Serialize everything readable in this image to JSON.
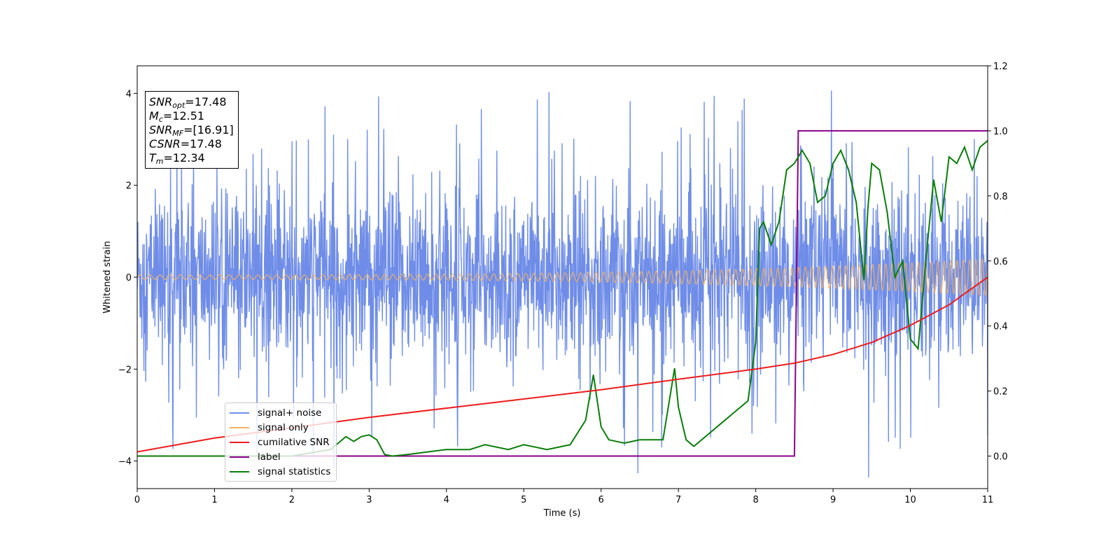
{
  "chart_data": {
    "type": "line",
    "xlabel": "Time (s)",
    "ylabel": "Whitened strain",
    "xlim": [
      0,
      11
    ],
    "ylim_left": [
      -4.6,
      4.6
    ],
    "ylim_right": [
      -0.1,
      1.2
    ],
    "x_ticks": [
      "0",
      "1",
      "2",
      "3",
      "4",
      "5",
      "6",
      "7",
      "8",
      "9",
      "10",
      "11"
    ],
    "y_ticks_left": [
      "−4",
      "−2",
      "0",
      "2",
      "4"
    ],
    "y_ticks_right": [
      "0.0",
      "0.2",
      "0.4",
      "0.6",
      "0.8",
      "1.0",
      "1.2"
    ],
    "series": [
      {
        "name": "signal+ noise",
        "axis": "left",
        "color": "#6f8de8",
        "description": "noise band roughly ±2.5 with spikes up to about ±4"
      },
      {
        "name": "signal only",
        "axis": "left",
        "color": "#f5b261",
        "description": "chirp oscillation, amplitude ~0.05 at t=0 growing to ~0.4 at t=11"
      },
      {
        "name": "cumilative SNR",
        "axis": "left",
        "color": "#ee1c1c",
        "x": [
          0,
          1,
          2,
          3,
          4,
          5,
          6,
          7,
          8,
          8.5,
          9,
          9.5,
          10,
          10.5,
          11
        ],
        "y": [
          -3.8,
          -3.5,
          -3.28,
          -3.05,
          -2.85,
          -2.65,
          -2.45,
          -2.22,
          -2.0,
          -1.87,
          -1.68,
          -1.42,
          -1.05,
          -0.6,
          0.0
        ]
      },
      {
        "name": "label",
        "axis": "right",
        "color": "#8b008b",
        "x": [
          0,
          8.5,
          8.55,
          11
        ],
        "y": [
          0,
          0,
          1,
          1
        ]
      },
      {
        "name": "signal statistics",
        "axis": "right",
        "color": "#0a7d0a",
        "x": [
          0,
          1,
          2,
          2.5,
          2.6,
          2.7,
          2.8,
          2.9,
          3.0,
          3.1,
          3.2,
          3.3,
          3.5,
          4.0,
          4.3,
          4.5,
          4.8,
          5.0,
          5.3,
          5.6,
          5.8,
          5.9,
          6.0,
          6.1,
          6.3,
          6.5,
          6.8,
          6.95,
          7.0,
          7.1,
          7.2,
          7.5,
          7.7,
          7.9,
          8.0,
          8.05,
          8.1,
          8.2,
          8.3,
          8.4,
          8.5,
          8.6,
          8.7,
          8.8,
          8.9,
          9.0,
          9.1,
          9.2,
          9.3,
          9.4,
          9.45,
          9.5,
          9.6,
          9.7,
          9.8,
          9.9,
          10.0,
          10.1,
          10.2,
          10.3,
          10.4,
          10.5,
          10.6,
          10.7,
          10.8,
          10.9,
          11.0
        ],
        "y": [
          0.0,
          0.0,
          0.0,
          0.02,
          0.04,
          0.06,
          0.045,
          0.06,
          0.065,
          0.05,
          0.005,
          0.0,
          0.005,
          0.02,
          0.02,
          0.035,
          0.02,
          0.035,
          0.02,
          0.035,
          0.11,
          0.25,
          0.09,
          0.05,
          0.04,
          0.05,
          0.05,
          0.27,
          0.15,
          0.05,
          0.03,
          0.09,
          0.13,
          0.17,
          0.35,
          0.7,
          0.72,
          0.65,
          0.72,
          0.88,
          0.9,
          0.94,
          0.9,
          0.78,
          0.8,
          0.9,
          0.94,
          0.88,
          0.78,
          0.54,
          0.76,
          0.9,
          0.88,
          0.75,
          0.55,
          0.6,
          0.36,
          0.33,
          0.6,
          0.85,
          0.72,
          0.92,
          0.9,
          0.95,
          0.88,
          0.95,
          0.97
        ]
      }
    ],
    "annotation_box": [
      {
        "sym": "SNR",
        "sub": "opt",
        "value": "=17.48"
      },
      {
        "sym": "M",
        "sub": "c",
        "value": "=12.51"
      },
      {
        "sym": "SNR",
        "sub": "MF",
        "value": "=[16.91]"
      },
      {
        "sym": "CSNR",
        "sub": "",
        "value": "=17.48"
      },
      {
        "sym": "T",
        "sub": "m",
        "value": "=12.34"
      }
    ],
    "legend_position": "lower-left"
  }
}
